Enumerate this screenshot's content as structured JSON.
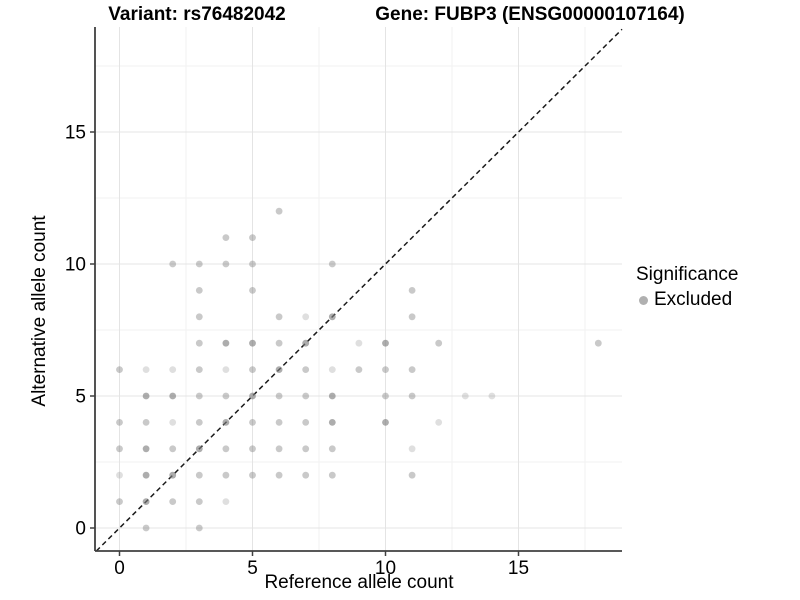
{
  "titles": {
    "variant": "Variant: rs76482042",
    "gene": "Gene: FUBP3 (ENSG00000107164)"
  },
  "axes": {
    "x": {
      "label": "Reference allele count",
      "major_ticks": [
        0,
        5,
        10,
        15
      ],
      "minor_ticks": [
        2.5,
        7.5,
        12.5,
        17.5
      ]
    },
    "y": {
      "label": "Alternative allele count",
      "major_ticks": [
        0,
        5,
        10,
        15
      ],
      "minor_ticks": [
        2.5,
        7.5,
        12.5,
        17.5
      ]
    }
  },
  "legend": {
    "title": "Significance",
    "items": [
      {
        "label": "Excluded",
        "swatch_color": "#b0b0b0"
      }
    ]
  },
  "style": {
    "background": "#ffffff",
    "text_color": "#000000",
    "point_color": "#7f7f7f",
    "point_opacity_levels": {
      "1": 0.25,
      "2": 0.42,
      "3": 0.64
    },
    "point_radius": 3.4,
    "major_grid_color": "#e4e4e4",
    "minor_grid_color": "#f2f2f2",
    "axis_line_color": "#404040",
    "diagonal_line_color": "#1a1a1a"
  },
  "chart_data": {
    "type": "scatter",
    "title": "Variant: rs76482042 | Gene: FUBP3 (ENSG00000107164)",
    "xlabel": "Reference allele count",
    "ylabel": "Alternative allele count",
    "xlim": [
      -0.9,
      18.9
    ],
    "ylim": [
      -0.9,
      19.0
    ],
    "x_ticks": [
      0,
      5,
      10,
      15
    ],
    "y_ticks": [
      0,
      5,
      10,
      15
    ],
    "grid": true,
    "legend_position": "right",
    "reference_line": {
      "type": "abline",
      "slope": 1,
      "intercept": 0,
      "linetype": "dashed"
    },
    "point_value_note": "each point = [reference_allele_count, alternative_allele_count, overplot_darkness_level_1_to_3]",
    "series": [
      {
        "name": "Excluded",
        "points": [
          [
            1,
            0,
            2
          ],
          [
            3,
            0,
            2
          ],
          [
            0,
            1,
            2
          ],
          [
            1,
            1,
            3
          ],
          [
            2,
            1,
            2
          ],
          [
            3,
            1,
            2
          ],
          [
            4,
            1,
            1
          ],
          [
            0,
            2,
            1
          ],
          [
            1,
            2,
            3
          ],
          [
            2,
            2,
            3
          ],
          [
            3,
            2,
            2
          ],
          [
            4,
            2,
            2
          ],
          [
            5,
            2,
            2
          ],
          [
            6,
            2,
            2
          ],
          [
            7,
            2,
            2
          ],
          [
            8,
            2,
            2
          ],
          [
            11,
            2,
            2
          ],
          [
            0,
            3,
            2
          ],
          [
            1,
            3,
            3
          ],
          [
            2,
            3,
            2
          ],
          [
            3,
            3,
            3
          ],
          [
            4,
            3,
            2
          ],
          [
            5,
            3,
            2
          ],
          [
            6,
            3,
            2
          ],
          [
            7,
            3,
            2
          ],
          [
            8,
            3,
            2
          ],
          [
            11,
            3,
            1
          ],
          [
            0,
            4,
            2
          ],
          [
            1,
            4,
            2
          ],
          [
            2,
            4,
            1
          ],
          [
            3,
            4,
            2
          ],
          [
            4,
            4,
            3
          ],
          [
            5,
            4,
            2
          ],
          [
            6,
            4,
            2
          ],
          [
            7,
            4,
            2
          ],
          [
            8,
            4,
            3
          ],
          [
            10,
            4,
            3
          ],
          [
            12,
            4,
            1
          ],
          [
            1,
            5,
            3
          ],
          [
            2,
            5,
            3
          ],
          [
            3,
            5,
            2
          ],
          [
            4,
            5,
            2
          ],
          [
            5,
            5,
            3
          ],
          [
            6,
            5,
            2
          ],
          [
            7,
            5,
            2
          ],
          [
            8,
            5,
            3
          ],
          [
            10,
            5,
            2
          ],
          [
            11,
            5,
            2
          ],
          [
            13,
            5,
            1
          ],
          [
            14,
            5,
            1
          ],
          [
            0,
            6,
            2
          ],
          [
            1,
            6,
            1
          ],
          [
            2,
            6,
            1
          ],
          [
            3,
            6,
            2
          ],
          [
            4,
            6,
            1
          ],
          [
            5,
            6,
            2
          ],
          [
            6,
            6,
            3
          ],
          [
            7,
            6,
            2
          ],
          [
            8,
            6,
            1
          ],
          [
            9,
            6,
            2
          ],
          [
            10,
            6,
            2
          ],
          [
            11,
            6,
            2
          ],
          [
            3,
            7,
            2
          ],
          [
            4,
            7,
            3
          ],
          [
            5,
            7,
            3
          ],
          [
            6,
            7,
            2
          ],
          [
            7,
            7,
            3
          ],
          [
            9,
            7,
            1
          ],
          [
            10,
            7,
            3
          ],
          [
            12,
            7,
            2
          ],
          [
            18,
            7,
            2
          ],
          [
            3,
            8,
            2
          ],
          [
            6,
            8,
            2
          ],
          [
            7,
            8,
            1
          ],
          [
            8,
            8,
            3
          ],
          [
            11,
            8,
            2
          ],
          [
            3,
            9,
            2
          ],
          [
            5,
            9,
            2
          ],
          [
            11,
            9,
            2
          ],
          [
            2,
            10,
            2
          ],
          [
            3,
            10,
            2
          ],
          [
            4,
            10,
            2
          ],
          [
            5,
            10,
            2
          ],
          [
            8,
            10,
            2
          ],
          [
            4,
            11,
            2
          ],
          [
            5,
            11,
            2
          ],
          [
            6,
            12,
            2
          ]
        ]
      }
    ]
  }
}
